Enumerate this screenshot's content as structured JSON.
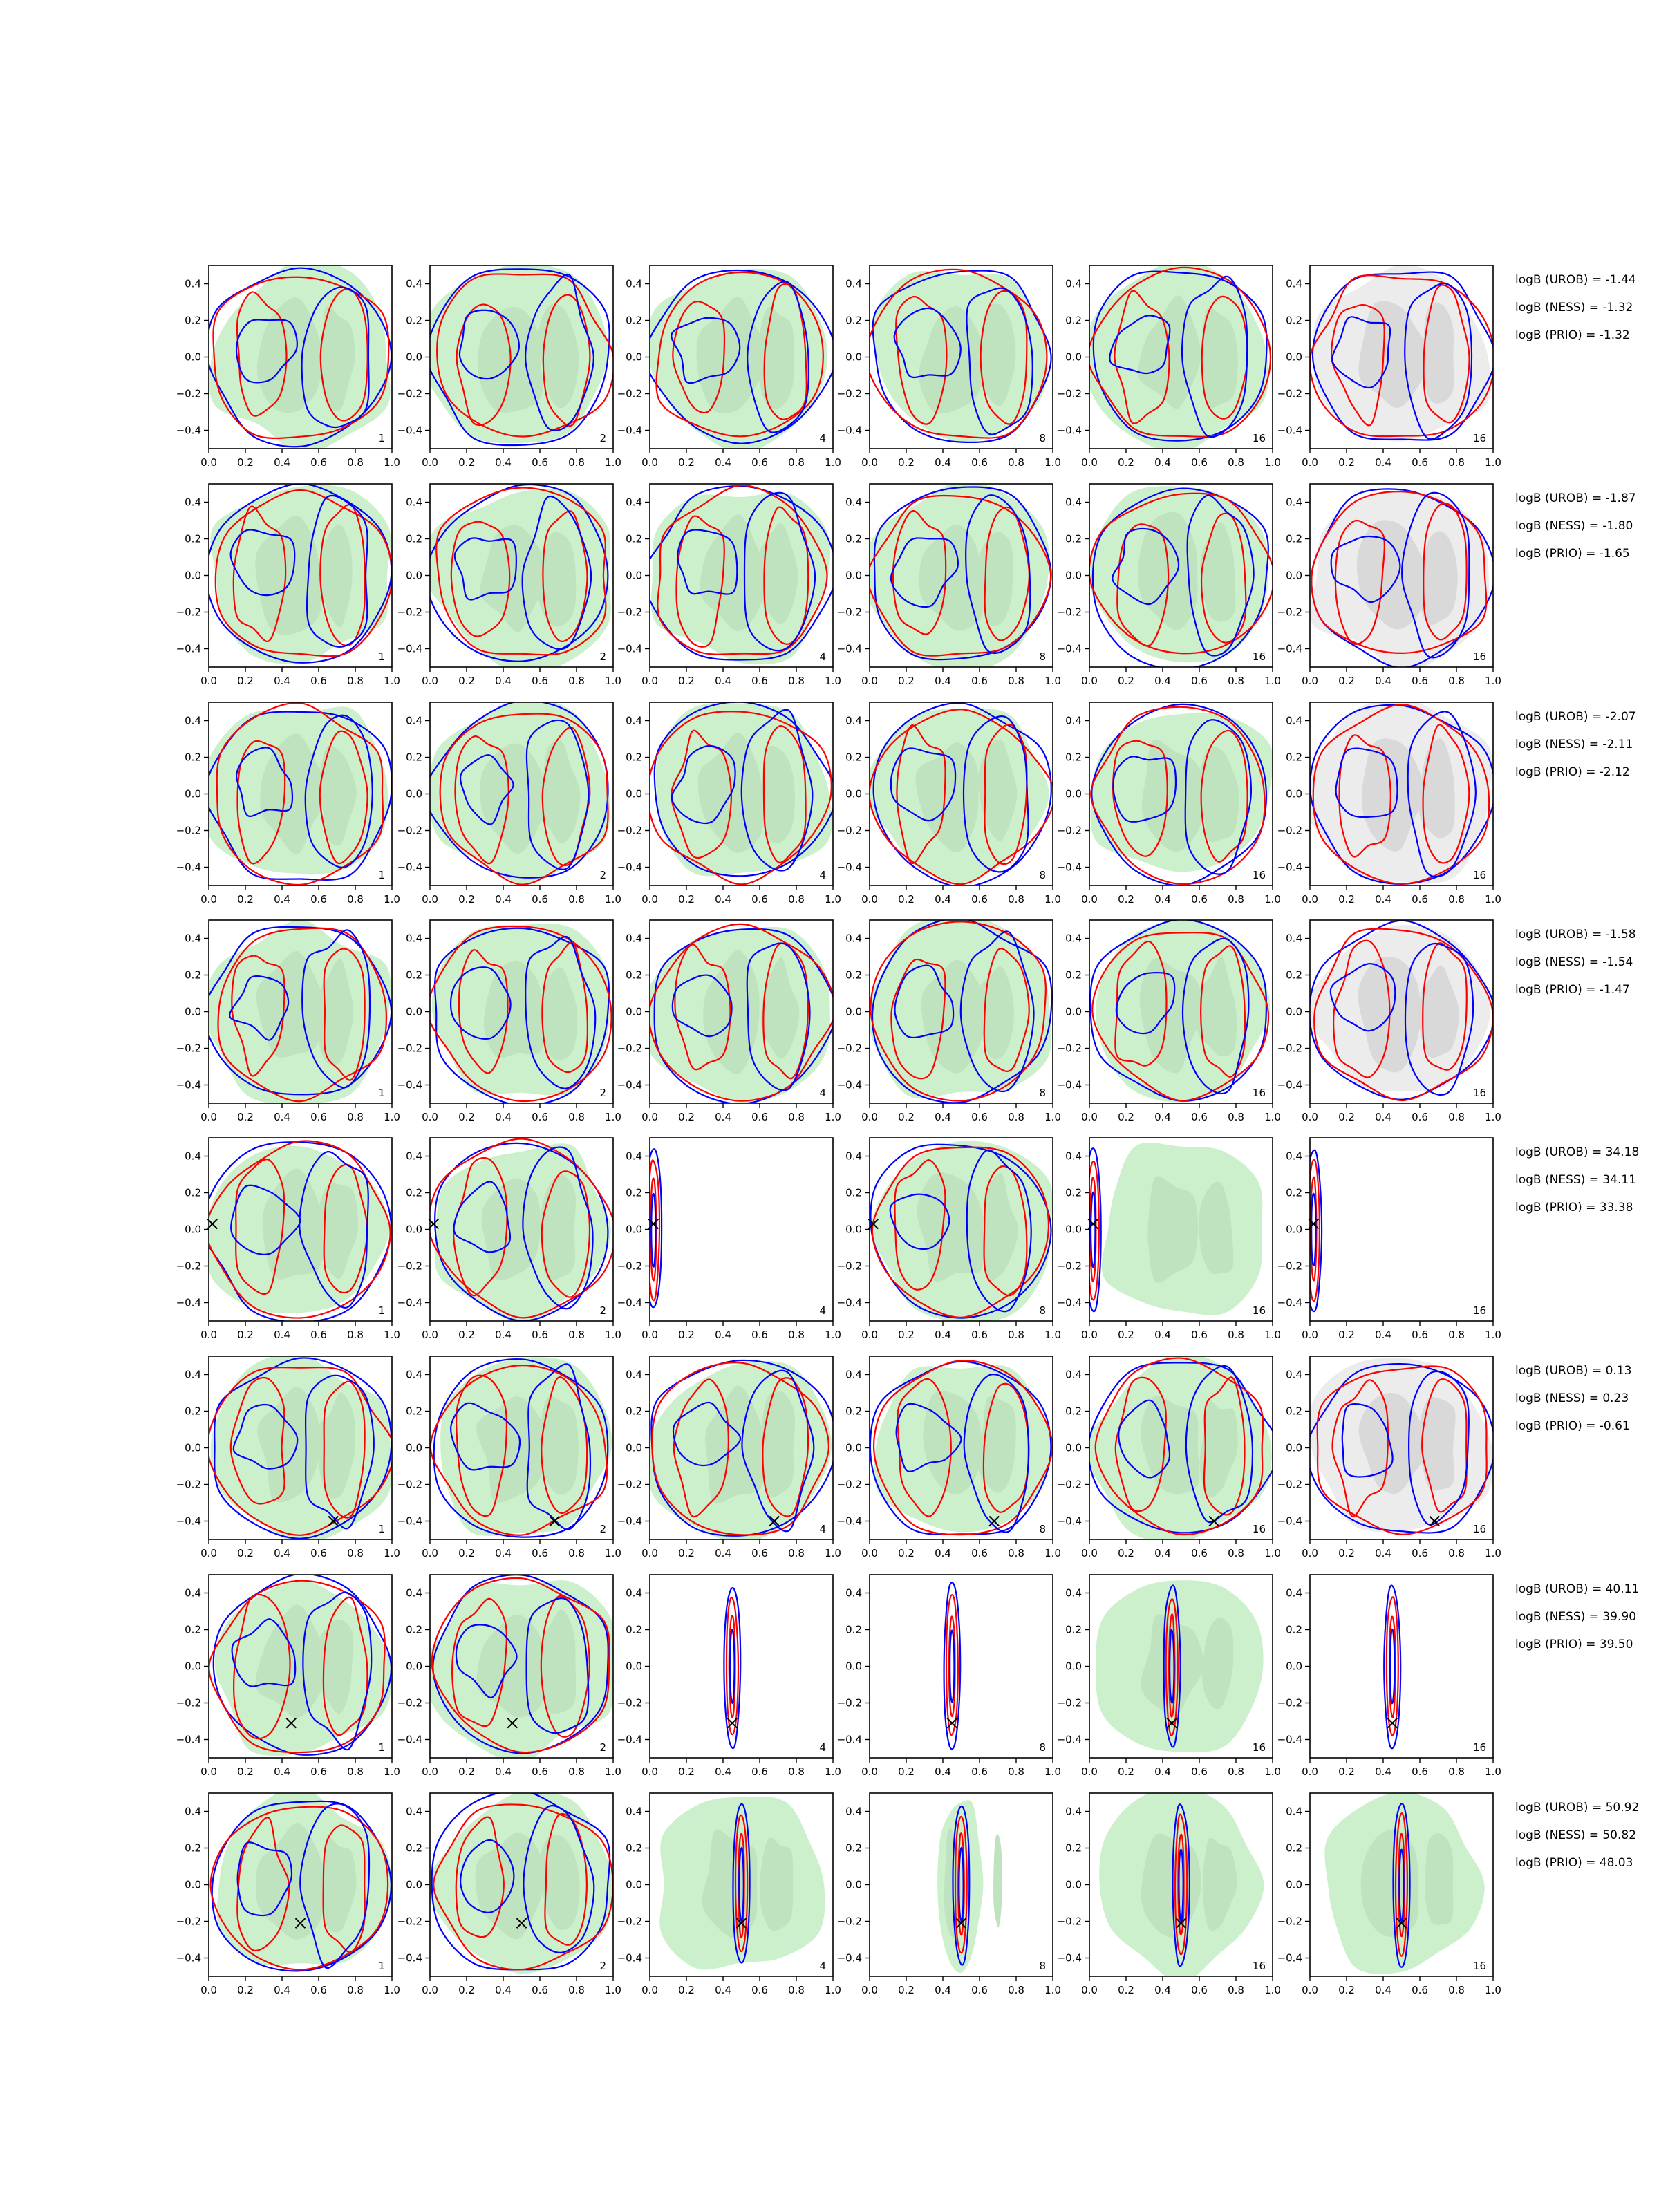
{
  "chart_data": {
    "type": "contour",
    "title": "",
    "xlabel": "",
    "ylabel": "",
    "xlim": [
      0.0,
      1.0
    ],
    "ylim": [
      -0.5,
      0.5
    ],
    "x_ticks": [
      "0.0",
      "0.2",
      "0.4",
      "0.6",
      "0.8",
      "1.0"
    ],
    "y_ticks": [
      "0.4",
      "0.2",
      "0.0",
      "−0.2",
      "−0.4"
    ],
    "grid": false,
    "colors": {
      "blue": "#0000ff",
      "red": "#ff0000",
      "green_fill": "#ccf0cc",
      "green_inner": "#bfe2bf",
      "gray_fill": "#ececec",
      "gray_inner": "#d9d9d9",
      "marker": "#000000"
    },
    "columns": [
      "1",
      "2",
      "4",
      "8",
      "16",
      "16"
    ],
    "rows": [
      {
        "labels": [
          "logB (UROB) = -1.44",
          "logB (NESS) = -1.32",
          "logB (PRIO) = -1.32"
        ],
        "marker": null
      },
      {
        "labels": [
          "logB (UROB) = -1.87",
          "logB (NESS) = -1.80",
          "logB (PRIO) = -1.65"
        ],
        "marker": null
      },
      {
        "labels": [
          "logB (UROB) = -2.07",
          "logB (NESS) = -2.11",
          "logB (PRIO) = -2.12"
        ],
        "marker": null
      },
      {
        "labels": [
          "logB (UROB) = -1.58",
          "logB (NESS) = -1.54",
          "logB (PRIO) = -1.47"
        ],
        "marker": null
      },
      {
        "labels": [
          "logB (UROB) = 34.18",
          "logB (NESS) = 34.11",
          "logB (PRIO) = 33.38"
        ],
        "marker": [
          0.02,
          0.03
        ]
      },
      {
        "labels": [
          "logB (UROB) = 0.13",
          "logB (NESS) = 0.23",
          "logB (PRIO) = -0.61"
        ],
        "marker": [
          0.68,
          -0.4
        ]
      },
      {
        "labels": [
          "logB (UROB) = 40.11",
          "logB (NESS) = 39.90",
          "logB (PRIO) = 39.50"
        ],
        "marker": [
          0.45,
          -0.31
        ]
      },
      {
        "labels": [
          "logB (UROB) = 50.92",
          "logB (NESS) = 50.82",
          "logB (PRIO) = 48.03"
        ],
        "marker": [
          0.5,
          -0.21
        ]
      }
    ]
  }
}
